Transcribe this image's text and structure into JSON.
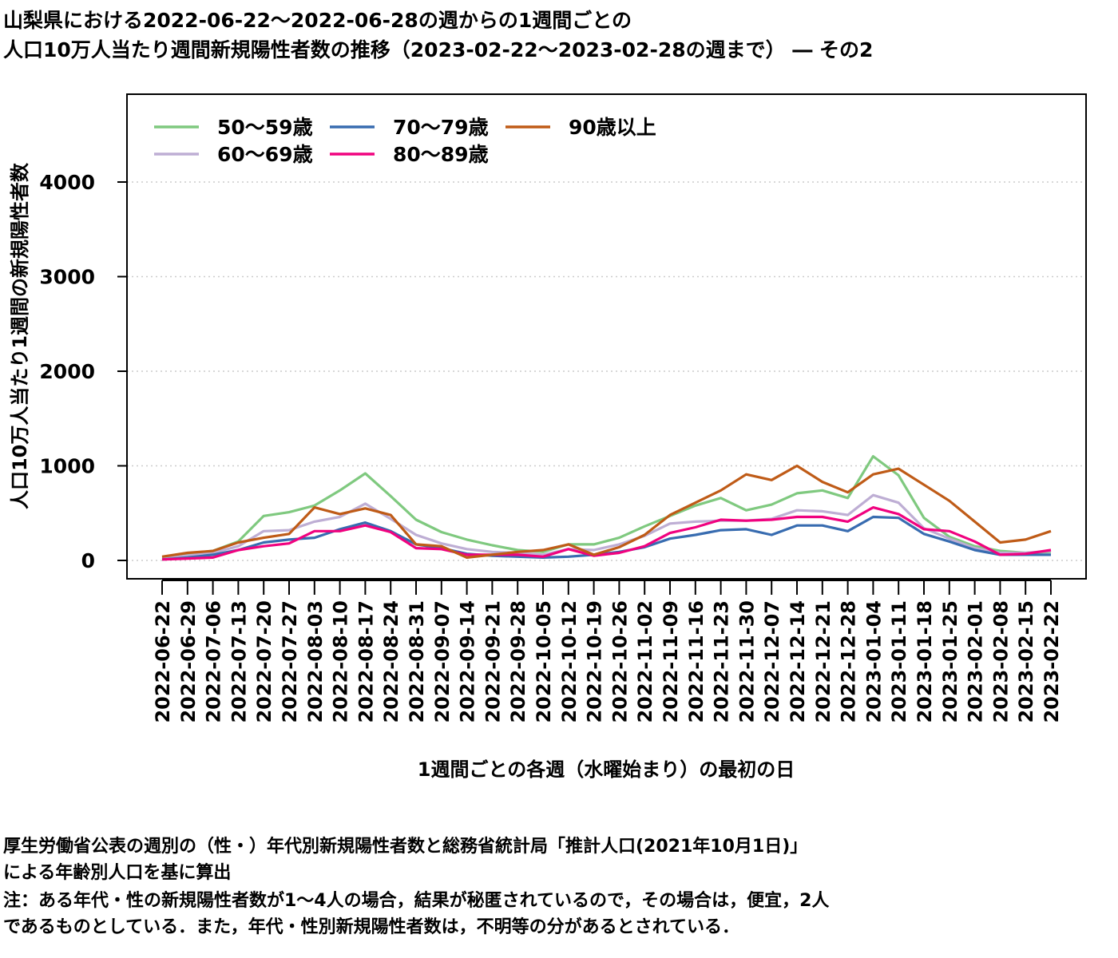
{
  "title": {
    "line1": "山梨県における2022-06-22〜2022-06-28の週からの1週間ごとの",
    "line2": "人口10万人当たり週間新規陽性者数の推移（2023-02-22〜2023-02-28の週まで） ― その2"
  },
  "notes": [
    "厚生労働省公表の週別の（性・）年代別新規陽性者数と総務省統計局「推計人口(2021年10月1日)」",
    "による年齢別人口を基に算出",
    "注：ある年代・性の新規陽性者数が1〜4人の場合，結果が秘匿されているので，その場合は，便宜，2人",
    "であるものとしている．また，年代・性別新規陽性者数は，不明等の分があるとされている．"
  ],
  "chart_data": {
    "type": "line",
    "title": "",
    "xlabel": "1週間ごとの各週（水曜始まり）の最初の日",
    "ylabel": "人口10万人当たり1週間の新規陽性者数",
    "ylim": [
      -150,
      4950
    ],
    "yticks": [
      0,
      1000,
      2000,
      3000,
      4000
    ],
    "grid": "horizontal dotted",
    "legend_position": "top-left",
    "categories": [
      "2022-06-22",
      "2022-06-29",
      "2022-07-06",
      "2022-07-13",
      "2022-07-20",
      "2022-07-27",
      "2022-08-03",
      "2022-08-10",
      "2022-08-17",
      "2022-08-24",
      "2022-08-31",
      "2022-09-07",
      "2022-09-14",
      "2022-09-21",
      "2022-09-28",
      "2022-10-05",
      "2022-10-12",
      "2022-10-19",
      "2022-10-26",
      "2022-11-02",
      "2022-11-09",
      "2022-11-16",
      "2022-11-23",
      "2022-11-30",
      "2022-12-07",
      "2022-12-14",
      "2022-12-21",
      "2022-12-28",
      "2023-01-04",
      "2023-01-11",
      "2023-01-18",
      "2023-01-25",
      "2023-02-01",
      "2023-02-08",
      "2023-02-15",
      "2023-02-22"
    ],
    "series": [
      {
        "name": "50〜59歳",
        "color": "#7fc97f",
        "values": [
          30,
          70,
          100,
          200,
          470,
          510,
          580,
          740,
          920,
          680,
          430,
          300,
          220,
          160,
          110,
          90,
          170,
          170,
          240,
          360,
          470,
          580,
          660,
          530,
          590,
          710,
          740,
          660,
          1100,
          900,
          450,
          250,
          150,
          100,
          80,
          90
        ]
      },
      {
        "name": "60〜69歳",
        "color": "#beaed4",
        "values": [
          20,
          50,
          80,
          150,
          310,
          320,
          410,
          460,
          600,
          440,
          270,
          180,
          120,
          90,
          80,
          60,
          120,
          110,
          170,
          260,
          390,
          410,
          420,
          420,
          440,
          530,
          520,
          480,
          690,
          610,
          340,
          230,
          130,
          80,
          80,
          100
        ]
      },
      {
        "name": "70〜79歳",
        "color": "#386cb0",
        "values": [
          10,
          30,
          60,
          110,
          190,
          220,
          240,
          330,
          400,
          310,
          170,
          130,
          70,
          50,
          40,
          30,
          40,
          60,
          90,
          140,
          230,
          270,
          320,
          330,
          270,
          370,
          370,
          310,
          460,
          450,
          280,
          200,
          110,
          60,
          60,
          60
        ]
      },
      {
        "name": "80〜89歳",
        "color": "#f0027f",
        "values": [
          10,
          20,
          30,
          110,
          150,
          180,
          310,
          310,
          370,
          300,
          130,
          120,
          60,
          60,
          60,
          40,
          120,
          50,
          80,
          150,
          290,
          350,
          430,
          420,
          430,
          460,
          460,
          410,
          560,
          490,
          330,
          310,
          200,
          60,
          70,
          110
        ]
      },
      {
        "name": "90歳以上",
        "color": "#bf5b17",
        "values": [
          40,
          80,
          100,
          190,
          240,
          280,
          560,
          490,
          550,
          480,
          170,
          150,
          30,
          60,
          90,
          110,
          170,
          60,
          140,
          270,
          480,
          610,
          740,
          910,
          850,
          1000,
          830,
          720,
          910,
          970,
          800,
          630,
          410,
          190,
          220,
          310
        ]
      }
    ]
  }
}
